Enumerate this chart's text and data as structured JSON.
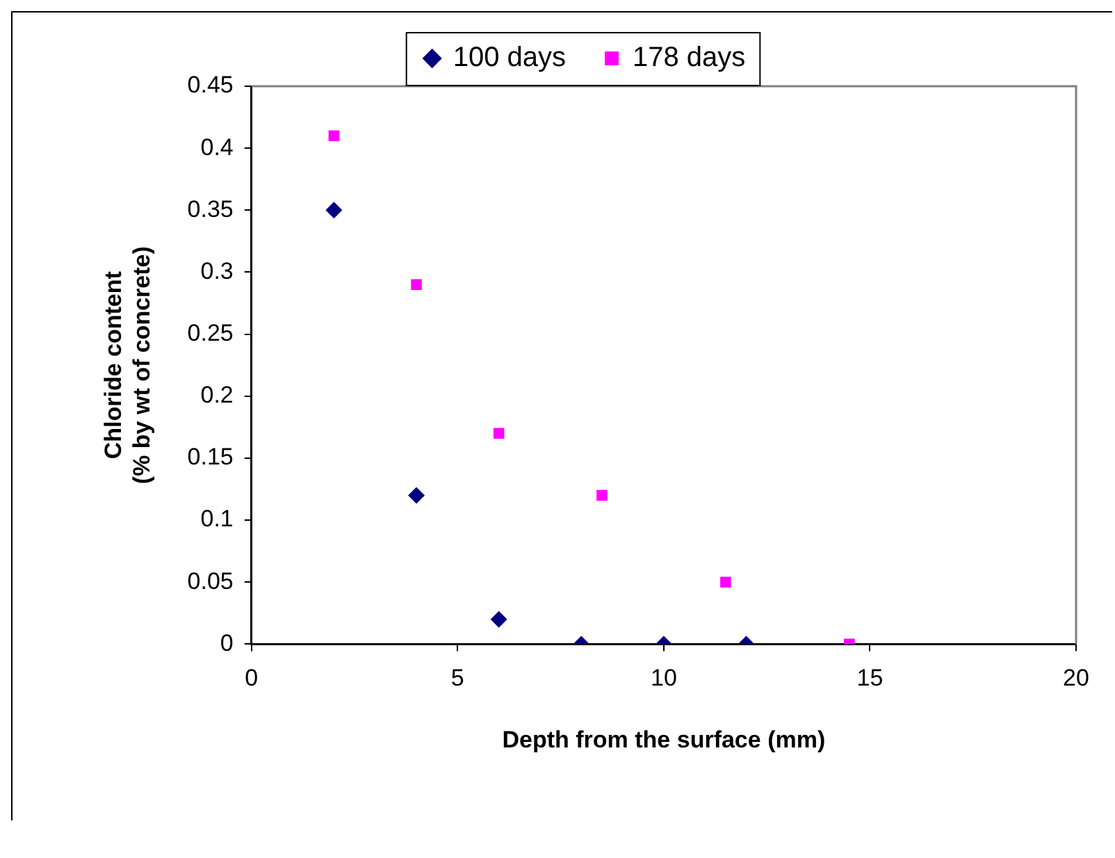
{
  "chart_data": {
    "type": "scatter",
    "xlabel": "Depth from the surface (mm)",
    "ylabel": "Chloride content\n(% by wt of concrete)",
    "xlim": [
      0,
      20
    ],
    "xticks": [
      0,
      5,
      10,
      15,
      20
    ],
    "ylim": [
      0,
      0.45
    ],
    "yticks": [
      0,
      0.05,
      0.1,
      0.15,
      0.2,
      0.25,
      0.3,
      0.35,
      0.4,
      0.45
    ],
    "grid": false,
    "legend": "top",
    "series": [
      {
        "name": "100 days",
        "color": "#000080",
        "marker": "diamond",
        "x": [
          2,
          4,
          6,
          8,
          10,
          12
        ],
        "values": [
          0.35,
          0.12,
          0.02,
          0,
          0,
          0
        ]
      },
      {
        "name": "178 days",
        "color": "#ff00ff",
        "marker": "square",
        "x": [
          2,
          4,
          6,
          8.5,
          11.5,
          14.5
        ],
        "values": [
          0.41,
          0.29,
          0.17,
          0.12,
          0.05,
          0
        ]
      }
    ]
  }
}
